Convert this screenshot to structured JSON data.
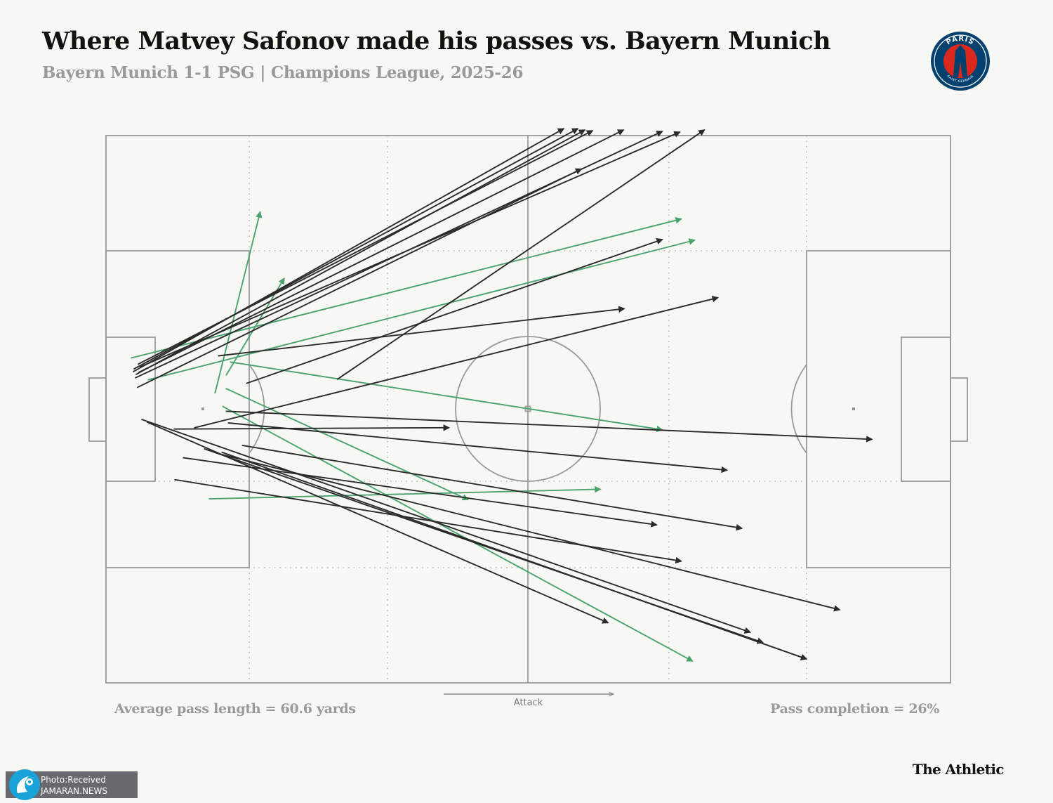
{
  "header": {
    "title": "Where Matvey Safonov made his passes vs. Bayern Munich",
    "subtitle": "Bayern Munich 1-1 PSG | Champions League, 2025-26"
  },
  "crest": {
    "top_text": "PARIS",
    "bottom_text": "SAINT-GERMAIN",
    "navy": "#004170",
    "red": "#da291c"
  },
  "stats": {
    "avg_pass_length": "Average pass length = 60.6 yards",
    "pass_completion": "Pass completion = 26%"
  },
  "attack_label": "Attack",
  "brand": "The Athletic",
  "watermark": {
    "line1": "Photo:Received",
    "line2": "JAMARAN.NEWS"
  },
  "colors": {
    "background": "#f7f7f3",
    "pitch_lines": "#9a9a9a",
    "unsuccessful_pass": "#2b2b2b",
    "successful_pass": "#4aa36e"
  },
  "chart_data": {
    "type": "pass-map",
    "title": "Where Matvey Safonov made his passes vs. Bayern Munich",
    "subtitle": "Bayern Munich 1-1 PSG | Champions League, 2025-26",
    "pitch": {
      "length_yards": 120,
      "width_yards": 80,
      "attack_direction": "left-to-right"
    },
    "passes": [
      {
        "x1": 3.9,
        "y1": 34.5,
        "x2": 65.0,
        "y2": -1.0,
        "completed": false
      },
      {
        "x1": 4.0,
        "y1": 34.1,
        "x2": 67.0,
        "y2": -1.0,
        "completed": false
      },
      {
        "x1": 4.3,
        "y1": 34.9,
        "x2": 68.0,
        "y2": -0.8,
        "completed": false
      },
      {
        "x1": 4.6,
        "y1": 33.4,
        "x2": 69.1,
        "y2": -0.7,
        "completed": false
      },
      {
        "x1": 4.7,
        "y1": 34.6,
        "x2": 73.5,
        "y2": -0.8,
        "completed": false
      },
      {
        "x1": 4.2,
        "y1": 35.4,
        "x2": 79.0,
        "y2": -0.6,
        "completed": false
      },
      {
        "x1": 4.9,
        "y1": 33.8,
        "x2": 81.5,
        "y2": -0.5,
        "completed": false
      },
      {
        "x1": 32.9,
        "y1": 35.6,
        "x2": 85.0,
        "y2": -0.8,
        "completed": false
      },
      {
        "x1": 4.5,
        "y1": 36.8,
        "x2": 67.5,
        "y2": 4.9,
        "completed": false
      },
      {
        "x1": 20.0,
        "y1": 36.2,
        "x2": 79.0,
        "y2": 15.2,
        "completed": false
      },
      {
        "x1": 16.0,
        "y1": 32.2,
        "x2": 73.6,
        "y2": 25.3,
        "completed": false
      },
      {
        "x1": 12.6,
        "y1": 42.7,
        "x2": 86.9,
        "y2": 23.7,
        "completed": false
      },
      {
        "x1": 9.7,
        "y1": 42.9,
        "x2": 48.7,
        "y2": 42.7,
        "completed": false
      },
      {
        "x1": 17.1,
        "y1": 40.3,
        "x2": 108.8,
        "y2": 44.4,
        "completed": false
      },
      {
        "x1": 17.4,
        "y1": 42.0,
        "x2": 88.2,
        "y2": 48.9,
        "completed": false
      },
      {
        "x1": 11.0,
        "y1": 47.1,
        "x2": 78.2,
        "y2": 56.9,
        "completed": false
      },
      {
        "x1": 19.4,
        "y1": 45.3,
        "x2": 90.3,
        "y2": 57.4,
        "completed": false
      },
      {
        "x1": 9.8,
        "y1": 50.3,
        "x2": 81.7,
        "y2": 62.2,
        "completed": false
      },
      {
        "x1": 5.9,
        "y1": 41.9,
        "x2": 71.3,
        "y2": 71.2,
        "completed": false
      },
      {
        "x1": 16.0,
        "y1": 46.5,
        "x2": 104.2,
        "y2": 69.3,
        "completed": false
      },
      {
        "x1": 14.0,
        "y1": 45.8,
        "x2": 93.3,
        "y2": 74.1,
        "completed": false
      },
      {
        "x1": 5.1,
        "y1": 41.5,
        "x2": 91.5,
        "y2": 72.6,
        "completed": false
      },
      {
        "x1": 16.5,
        "y1": 46.3,
        "x2": 99.5,
        "y2": 76.5,
        "completed": false
      },
      {
        "x1": 3.6,
        "y1": 32.5,
        "x2": 81.7,
        "y2": 12.2,
        "completed": true
      },
      {
        "x1": 6.0,
        "y1": 35.7,
        "x2": 83.6,
        "y2": 15.3,
        "completed": true
      },
      {
        "x1": 15.5,
        "y1": 37.6,
        "x2": 21.9,
        "y2": 11.2,
        "completed": true
      },
      {
        "x1": 17.1,
        "y1": 35.0,
        "x2": 25.3,
        "y2": 20.9,
        "completed": true
      },
      {
        "x1": 17.7,
        "y1": 33.1,
        "x2": 79.0,
        "y2": 43.0,
        "completed": true
      },
      {
        "x1": 17.1,
        "y1": 37.0,
        "x2": 51.4,
        "y2": 53.2,
        "completed": true
      },
      {
        "x1": 16.6,
        "y1": 39.6,
        "x2": 83.3,
        "y2": 76.8,
        "completed": true
      },
      {
        "x1": 14.7,
        "y1": 53.1,
        "x2": 70.2,
        "y2": 51.7,
        "completed": true
      }
    ]
  }
}
